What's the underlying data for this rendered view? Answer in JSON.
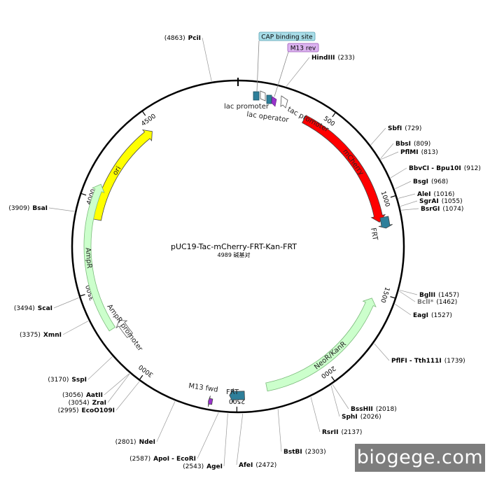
{
  "plasmid": {
    "name": "pUC19-Tac-mCherry-FRT-Kan-FRT",
    "length_label": "4989 碱基对",
    "length_bp": 4989
  },
  "watermark": "biogege.com",
  "features": [
    {
      "name": "ori",
      "start": 4480,
      "end": 3890,
      "color": "#ffff00",
      "dir": 1
    },
    {
      "name": "mCherry",
      "start": 380,
      "end": 1113,
      "color": "#ff0000",
      "dir": 1
    },
    {
      "name": "NeoR/KanR",
      "start": 1540,
      "end": 2335,
      "color": "#ccffcc",
      "dir": -1
    },
    {
      "name": "AmpR",
      "start": 3280,
      "end": 4080,
      "color": "#ccffcc",
      "dir": 1
    },
    {
      "name": "AmpR promoter",
      "start": 3195,
      "end": 3300,
      "color": "#ffffff",
      "dir": 1
    },
    {
      "name": "FRT",
      "start": 1090,
      "end": 1150,
      "color": "#2e7f9a",
      "dir": 1
    },
    {
      "name": "FRT",
      "start": 2460,
      "end": 2540,
      "color": "#2e7f9a",
      "dir": 1
    },
    {
      "name": "M13 fwd",
      "start": 2625,
      "end": 2645,
      "color": "#9933cc",
      "dir": 1
    }
  ],
  "small_labels": {
    "cap": "CAP binding site",
    "m13rev": "M13 rev",
    "lac_promoter": "lac promoter",
    "lac_operator": "lac operator",
    "tac_promoter": "tac promoter",
    "m13fwd": "M13 fwd",
    "frt": "FRT"
  },
  "ticks": [
    {
      "bp": 500,
      "label": "500"
    },
    {
      "bp": 1000,
      "label": "1000"
    },
    {
      "bp": 1500,
      "label": "1500"
    },
    {
      "bp": 2000,
      "label": "2000"
    },
    {
      "bp": 2500,
      "label": "2500"
    },
    {
      "bp": 3000,
      "label": "3000"
    },
    {
      "bp": 3500,
      "label": "3500"
    },
    {
      "bp": 4000,
      "label": "4000"
    },
    {
      "bp": 4500,
      "label": "4500"
    }
  ],
  "enzymes_right": [
    {
      "name": "HindIII",
      "pos": "(233)",
      "bp": 233
    },
    {
      "name": "SbfI",
      "pos": "(729)",
      "bp": 729
    },
    {
      "name": "BbsI",
      "pos": "(809)",
      "bp": 809
    },
    {
      "name": "PflMI",
      "pos": "(813)",
      "bp": 813
    },
    {
      "name": "BbvCI - Bpu10I",
      "pos": "(912)",
      "bp": 912
    },
    {
      "name": "BsgI",
      "pos": "(968)",
      "bp": 968
    },
    {
      "name": "AleI",
      "pos": "(1016)",
      "bp": 1016
    },
    {
      "name": "SgrAI",
      "pos": "(1055)",
      "bp": 1055
    },
    {
      "name": "BsrGI",
      "pos": "(1074)",
      "bp": 1074
    },
    {
      "name": "BglII",
      "pos": "(1457)",
      "bp": 1457
    },
    {
      "name": "BclI*",
      "pos": "(1462)",
      "bp": 1462,
      "gray": true
    },
    {
      "name": "EagI",
      "pos": "(1527)",
      "bp": 1527
    },
    {
      "name": "PflFI - Tth111I",
      "pos": "(1739)",
      "bp": 1739
    },
    {
      "name": "BssHII",
      "pos": "(2018)",
      "bp": 2018
    },
    {
      "name": "SphI",
      "pos": "(2026)",
      "bp": 2026
    },
    {
      "name": "RsrII",
      "pos": "(2137)",
      "bp": 2137
    },
    {
      "name": "BstBI",
      "pos": "(2303)",
      "bp": 2303
    },
    {
      "name": "AfeI",
      "pos": "(2472)",
      "bp": 2472
    }
  ],
  "enzymes_left": [
    {
      "name": "PciI",
      "pos": "(4863)",
      "bp": 4863
    },
    {
      "name": "BsaI",
      "pos": "(3909)",
      "bp": 3909
    },
    {
      "name": "ScaI",
      "pos": "(3494)",
      "bp": 3494
    },
    {
      "name": "XmnI",
      "pos": "(3375)",
      "bp": 3375
    },
    {
      "name": "SspI",
      "pos": "(3170)",
      "bp": 3170
    },
    {
      "name": "AatII",
      "pos": "(3056)",
      "bp": 3056
    },
    {
      "name": "ZraI",
      "pos": "(3054)",
      "bp": 3054
    },
    {
      "name": "EcoO109I",
      "pos": "(2995)",
      "bp": 2995
    },
    {
      "name": "NdeI",
      "pos": "(2801)",
      "bp": 2801
    },
    {
      "name": "ApoI - EcoRI",
      "pos": "(2587)",
      "bp": 2587
    },
    {
      "name": "AgeI",
      "pos": "(2543)",
      "bp": 2543
    }
  ]
}
